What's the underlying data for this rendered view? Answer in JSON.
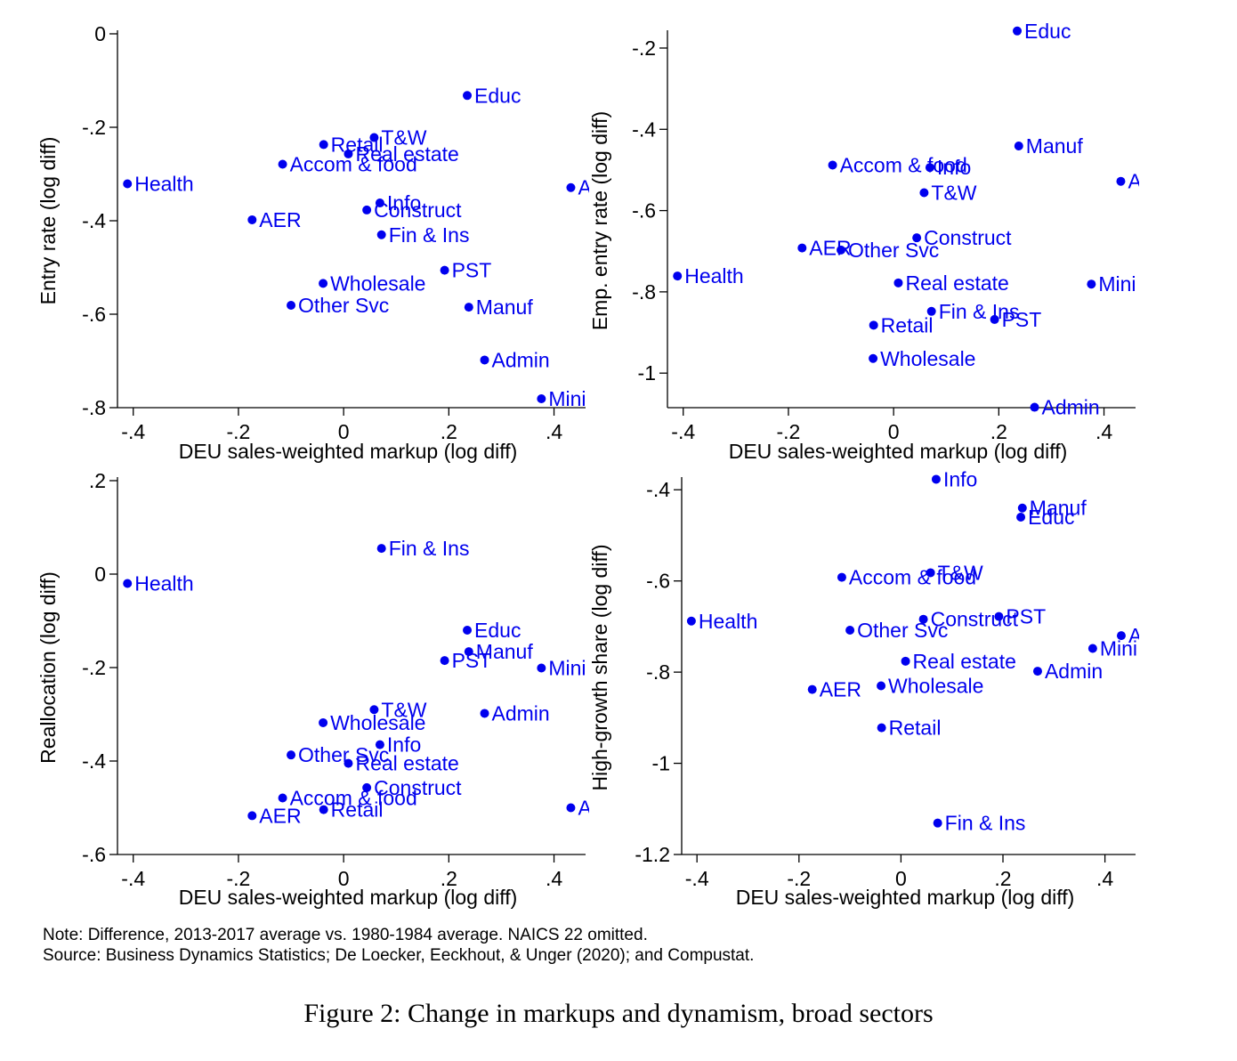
{
  "colors": {
    "points": "#0000ee",
    "axes": "#000000",
    "background": "#ffffff"
  },
  "chart_data": [
    {
      "type": "scatter",
      "panel": "top-left",
      "xlabel": "DEU sales-weighted markup (log diff)",
      "ylabel": "Entry rate (log diff)",
      "xlim": [
        -0.43,
        0.46
      ],
      "ylim": [
        -0.8,
        0
      ],
      "xticks": [
        -0.4,
        -0.2,
        0,
        0.2,
        0.4
      ],
      "xtick_labels": [
        "-.4",
        "-.2",
        "0",
        ".2",
        ".4"
      ],
      "yticks": [
        0,
        -0.2,
        -0.4,
        -0.6,
        -0.8
      ],
      "ytick_labels": [
        "0",
        "-.2",
        "-.4",
        "-.6",
        "-.8"
      ],
      "points": [
        {
          "label": "Educ",
          "x": 0.235,
          "y": -0.132
        },
        {
          "label": "T&W",
          "x": 0.058,
          "y": -0.222
        },
        {
          "label": "Retail",
          "x": -0.038,
          "y": -0.237
        },
        {
          "label": "Real estate",
          "x": 0.009,
          "y": -0.257
        },
        {
          "label": "Accom & food",
          "x": -0.116,
          "y": -0.279
        },
        {
          "label": "Health",
          "x": -0.411,
          "y": -0.321
        },
        {
          "label": "A",
          "x": 0.432,
          "y": -0.329
        },
        {
          "label": "Info",
          "x": 0.069,
          "y": -0.362
        },
        {
          "label": "Construct",
          "x": 0.044,
          "y": -0.377
        },
        {
          "label": "AER",
          "x": -0.174,
          "y": -0.398
        },
        {
          "label": "Fin & Ins",
          "x": 0.072,
          "y": -0.43
        },
        {
          "label": "PST",
          "x": 0.192,
          "y": -0.506
        },
        {
          "label": "Wholesale",
          "x": -0.039,
          "y": -0.534
        },
        {
          "label": "Other Svc",
          "x": -0.1,
          "y": -0.581
        },
        {
          "label": "Manuf",
          "x": 0.238,
          "y": -0.585
        },
        {
          "label": "Admin",
          "x": 0.268,
          "y": -0.698
        },
        {
          "label": "Mini",
          "x": 0.376,
          "y": -0.781
        }
      ]
    },
    {
      "type": "scatter",
      "panel": "top-right",
      "xlabel": "DEU sales-weighted markup (log diff)",
      "ylabel": "Emp. entry rate (log diff)",
      "xlim": [
        -0.43,
        0.46
      ],
      "ylim": [
        -1.085,
        -0.165
      ],
      "xticks": [
        -0.4,
        -0.2,
        0,
        0.2,
        0.4
      ],
      "xtick_labels": [
        "-.4",
        "-.2",
        "0",
        ".2",
        ".4"
      ],
      "yticks": [
        -0.2,
        -0.4,
        -0.6,
        -0.8,
        -1.0
      ],
      "ytick_labels": [
        "-.2",
        "-.4",
        "-.6",
        "-.8",
        "-1"
      ],
      "points": [
        {
          "label": "Educ",
          "x": 0.235,
          "y": -0.158
        },
        {
          "label": "Manuf",
          "x": 0.238,
          "y": -0.441
        },
        {
          "label": "Accom & food",
          "x": -0.116,
          "y": -0.488
        },
        {
          "label": "Info",
          "x": 0.069,
          "y": -0.494
        },
        {
          "label": "Ag",
          "x": 0.432,
          "y": -0.528
        },
        {
          "label": "T&W",
          "x": 0.058,
          "y": -0.556
        },
        {
          "label": "Construct",
          "x": 0.044,
          "y": -0.667
        },
        {
          "label": "AER",
          "x": -0.174,
          "y": -0.692
        },
        {
          "label": "Other Svc",
          "x": -0.1,
          "y": -0.697
        },
        {
          "label": "Health",
          "x": -0.411,
          "y": -0.761
        },
        {
          "label": "Real estate",
          "x": 0.009,
          "y": -0.778
        },
        {
          "label": "Mini",
          "x": 0.376,
          "y": -0.781
        },
        {
          "label": "Fin & Ins",
          "x": 0.072,
          "y": -0.848
        },
        {
          "label": "PST",
          "x": 0.192,
          "y": -0.868
        },
        {
          "label": "Retail",
          "x": -0.038,
          "y": -0.882
        },
        {
          "label": "Wholesale",
          "x": -0.039,
          "y": -0.964
        },
        {
          "label": "Admin",
          "x": 0.268,
          "y": -1.084
        }
      ]
    },
    {
      "type": "scatter",
      "panel": "bottom-left",
      "xlabel": "DEU sales-weighted markup (log diff)",
      "ylabel": "Reallocation (log diff)",
      "xlim": [
        -0.43,
        0.46
      ],
      "ylim": [
        -0.6,
        0.2
      ],
      "xticks": [
        -0.4,
        -0.2,
        0,
        0.2,
        0.4
      ],
      "xtick_labels": [
        "-.4",
        "-.2",
        "0",
        ".2",
        ".4"
      ],
      "yticks": [
        0.2,
        0,
        -0.2,
        -0.4,
        -0.6
      ],
      "ytick_labels": [
        ".2",
        "0",
        "-.2",
        "-.4",
        "-.6"
      ],
      "points": [
        {
          "label": "Fin & Ins",
          "x": 0.072,
          "y": 0.055
        },
        {
          "label": "Health",
          "x": -0.411,
          "y": -0.02
        },
        {
          "label": "Educ",
          "x": 0.235,
          "y": -0.12
        },
        {
          "label": "Manuf",
          "x": 0.238,
          "y": -0.166
        },
        {
          "label": "PST",
          "x": 0.192,
          "y": -0.185
        },
        {
          "label": "Mini",
          "x": 0.376,
          "y": -0.201
        },
        {
          "label": "T&W",
          "x": 0.058,
          "y": -0.29
        },
        {
          "label": "Admin",
          "x": 0.268,
          "y": -0.298
        },
        {
          "label": "Wholesale",
          "x": -0.039,
          "y": -0.318
        },
        {
          "label": "Info",
          "x": 0.069,
          "y": -0.365
        },
        {
          "label": "Other Svc",
          "x": -0.1,
          "y": -0.387
        },
        {
          "label": "Real estate",
          "x": 0.009,
          "y": -0.405
        },
        {
          "label": "Construct",
          "x": 0.044,
          "y": -0.457
        },
        {
          "label": "Accom & food",
          "x": -0.116,
          "y": -0.479
        },
        {
          "label": "A",
          "x": 0.432,
          "y": -0.5
        },
        {
          "label": "Retail",
          "x": -0.038,
          "y": -0.504
        },
        {
          "label": "AER",
          "x": -0.174,
          "y": -0.517
        }
      ]
    },
    {
      "type": "scatter",
      "panel": "bottom-right",
      "xlabel": "DEU sales-weighted markup (log diff)",
      "ylabel": "High-growth share (log diff)",
      "xlim": [
        -0.43,
        0.46
      ],
      "ylim": [
        -1.2,
        -0.38
      ],
      "xticks": [
        -0.4,
        -0.2,
        0,
        0.2,
        0.4
      ],
      "xtick_labels": [
        "-.4",
        "-.2",
        "0",
        ".2",
        ".4"
      ],
      "yticks": [
        -0.4,
        -0.6,
        -0.8,
        -1.0,
        -1.2
      ],
      "ytick_labels": [
        "-.4",
        "-.6",
        "-.8",
        "-1",
        "-1.2"
      ],
      "points": [
        {
          "label": "Info",
          "x": 0.069,
          "y": -0.377
        },
        {
          "label": "Manuf",
          "x": 0.238,
          "y": -0.44
        },
        {
          "label": "Educ",
          "x": 0.235,
          "y": -0.46
        },
        {
          "label": "T&W",
          "x": 0.058,
          "y": -0.582
        },
        {
          "label": "Accom & food",
          "x": -0.116,
          "y": -0.592
        },
        {
          "label": "Health",
          "x": -0.411,
          "y": -0.688
        },
        {
          "label": "Construct",
          "x": 0.044,
          "y": -0.684
        },
        {
          "label": "PST",
          "x": 0.192,
          "y": -0.678
        },
        {
          "label": "Other Svc",
          "x": -0.1,
          "y": -0.708
        },
        {
          "label": "Ag",
          "x": 0.432,
          "y": -0.72
        },
        {
          "label": "Mini",
          "x": 0.376,
          "y": -0.748
        },
        {
          "label": "Real estate",
          "x": 0.009,
          "y": -0.776
        },
        {
          "label": "Admin",
          "x": 0.268,
          "y": -0.798
        },
        {
          "label": "Wholesale",
          "x": -0.039,
          "y": -0.83
        },
        {
          "label": "AER",
          "x": -0.174,
          "y": -0.838
        },
        {
          "label": "Retail",
          "x": -0.038,
          "y": -0.922
        },
        {
          "label": "Fin & Ins",
          "x": 0.072,
          "y": -1.131
        }
      ]
    }
  ],
  "note": "Note: Difference, 2013-2017 average vs. 1980-1984 average. NAICS 22 omitted.",
  "source": "Source: Business Dynamics Statistics; De Loecker, Eeckhout, & Unger (2020); and Compustat.",
  "caption": "Figure 2: Change in markups and dynamism, broad sectors"
}
